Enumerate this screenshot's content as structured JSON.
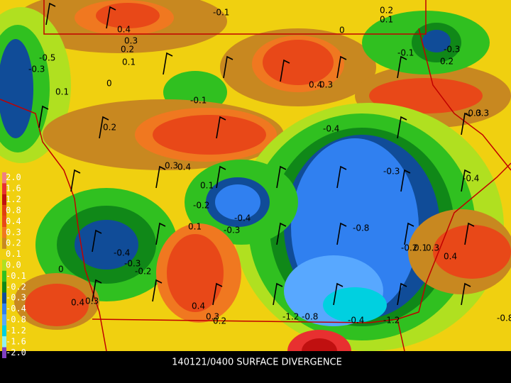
{
  "caption": "140121/0400 SURFACE DIVERGENCE",
  "legend": {
    "labels": [
      "2.0",
      "1.6",
      "1.2",
      "0.8",
      "0.4",
      "0.3",
      "0.2",
      "0.1",
      "0.0",
      "-0.1",
      "-0.2",
      "-0.3",
      "-0.4",
      "-0.8",
      "-1.2",
      "-1.6",
      "-2.0"
    ],
    "colors": [
      "#f08080",
      "#e83030",
      "#c01010",
      "#e04010",
      "#e84818",
      "#f07820",
      "#c88820",
      "#f0d010",
      "#b0e020",
      "#30c020",
      "#108818",
      "#104c98",
      "#3080f0",
      "#58a8ff",
      "#00d0e0",
      "#90f0f0",
      "#8040c0"
    ]
  },
  "contour_labels": [
    "0.4",
    "0.3",
    "0.2",
    "0.1",
    "0",
    "-0.1",
    "-0.5",
    "-0.3",
    "0.1",
    "0.2",
    "0.3",
    "0.4",
    "0.1",
    "-0.2",
    "-0.4",
    "-0.3",
    "0.1",
    "-0.4",
    "-0.3",
    "-0.2",
    "0",
    "0.4",
    "0.3",
    "0.4",
    "0.3",
    "0.2",
    "-1.2",
    "-0.8",
    "-0.4",
    "-1.2",
    "-0.8",
    "-0.8",
    "-0.4",
    "-0.3",
    "-0.4",
    "0.4",
    "0.3",
    "-0.1",
    "-0.1",
    "-0.3",
    "0.2",
    "-0.3",
    "0.3",
    "-0.2",
    "0.1",
    "0.3",
    "0.4",
    "0.2",
    "0.1",
    "0"
  ]
}
